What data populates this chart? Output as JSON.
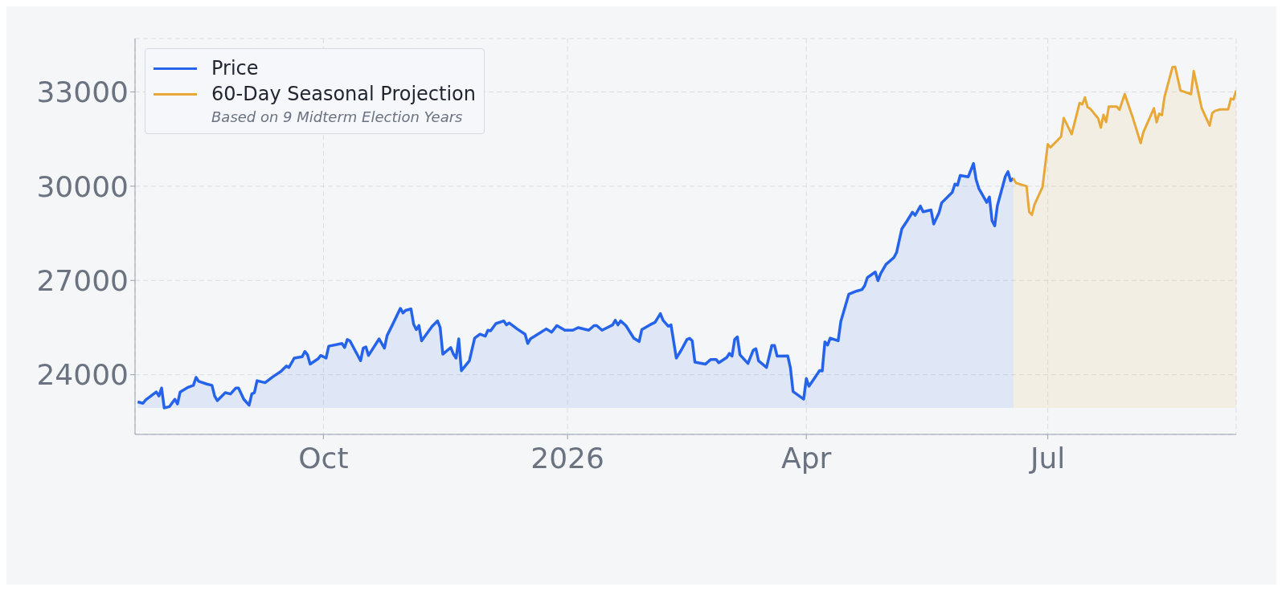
{
  "chart_data": {
    "type": "area",
    "xlim": [
      "2025-07-22",
      "2026-09-10"
    ],
    "xticks": [
      {
        "value": "2025-10-01",
        "label": "Oct"
      },
      {
        "value": "2026-01-01",
        "label": "2026"
      },
      {
        "value": "2026-04-01",
        "label": "Apr"
      },
      {
        "value": "2026-07-01",
        "label": "Jul"
      }
    ],
    "ylim": [
      22100,
      34700
    ],
    "yticks": [
      24000,
      27000,
      30000,
      33000
    ],
    "grid": true,
    "legend": "top left",
    "annotations": [
      "Based on 9 Midterm Election Years"
    ],
    "series": [
      {
        "name": "Price",
        "color": "#2563eb",
        "x": [
          "2025-07-23",
          "2025-07-25",
          "2025-07-26",
          "2025-07-30",
          "2025-07-31",
          "2025-08-01",
          "2025-08-02",
          "2025-08-04",
          "2025-08-06",
          "2025-08-07",
          "2025-08-08",
          "2025-08-11",
          "2025-08-13",
          "2025-08-14",
          "2025-08-15",
          "2025-08-18",
          "2025-08-20",
          "2025-08-21",
          "2025-08-22",
          "2025-08-25",
          "2025-08-27",
          "2025-08-29",
          "2025-08-30",
          "2025-09-01",
          "2025-09-03",
          "2025-09-04",
          "2025-09-05",
          "2025-09-06",
          "2025-09-09",
          "2025-09-12",
          "2025-09-15",
          "2025-09-17",
          "2025-09-18",
          "2025-09-20",
          "2025-09-23",
          "2025-09-24",
          "2025-09-25",
          "2025-09-26",
          "2025-09-29",
          "2025-09-30",
          "2025-10-02",
          "2025-10-03",
          "2025-10-08",
          "2025-10-09",
          "2025-10-10",
          "2025-10-11",
          "2025-10-15",
          "2025-10-16",
          "2025-10-17",
          "2025-10-18",
          "2025-10-22",
          "2025-10-24",
          "2025-10-25",
          "2025-10-27",
          "2025-10-30",
          "2025-10-31",
          "2025-11-01",
          "2025-11-03",
          "2025-11-04",
          "2025-11-05",
          "2025-11-06",
          "2025-11-07",
          "2025-11-11",
          "2025-11-13",
          "2025-11-14",
          "2025-11-15",
          "2025-11-18",
          "2025-11-19",
          "2025-11-20",
          "2025-11-21",
          "2025-11-22",
          "2025-11-25",
          "2025-11-27",
          "2025-11-29",
          "2025-12-01",
          "2025-12-02",
          "2025-12-03",
          "2025-12-05",
          "2025-12-08",
          "2025-12-09",
          "2025-12-10",
          "2025-12-13",
          "2025-12-16",
          "2025-12-17",
          "2025-12-18",
          "2025-12-22",
          "2025-12-24",
          "2025-12-26",
          "2025-12-28",
          "2025-12-31",
          "2026-01-03",
          "2026-01-05",
          "2026-01-09",
          "2026-01-11",
          "2026-01-12",
          "2026-01-14",
          "2026-01-16",
          "2026-01-18",
          "2026-01-19",
          "2026-01-20",
          "2026-01-21",
          "2026-01-23",
          "2026-01-26",
          "2026-01-28",
          "2026-01-29",
          "2026-02-01",
          "2026-02-03",
          "2026-02-05",
          "2026-02-06",
          "2026-02-08",
          "2026-02-09",
          "2026-02-11",
          "2026-02-13",
          "2026-02-15",
          "2026-02-16",
          "2026-02-17",
          "2026-02-18",
          "2026-02-22",
          "2026-02-24",
          "2026-02-26",
          "2026-02-27",
          "2026-03-02",
          "2026-03-03",
          "2026-03-04",
          "2026-03-05",
          "2026-03-06",
          "2026-03-07",
          "2026-03-10",
          "2026-03-12",
          "2026-03-13",
          "2026-03-14",
          "2026-03-17",
          "2026-03-19",
          "2026-03-20",
          "2026-03-21",
          "2026-03-25",
          "2026-03-26",
          "2026-03-27",
          "2026-03-31",
          "2026-04-01",
          "2026-04-02",
          "2026-04-06",
          "2026-04-07",
          "2026-04-08",
          "2026-04-09",
          "2026-04-10",
          "2026-04-13",
          "2026-04-14",
          "2026-04-17",
          "2026-04-20",
          "2026-04-22",
          "2026-04-23",
          "2026-04-24",
          "2026-04-27",
          "2026-04-28",
          "2026-04-29",
          "2026-05-01",
          "2026-05-04",
          "2026-05-05",
          "2026-05-07",
          "2026-05-09",
          "2026-05-11",
          "2026-05-12",
          "2026-05-14",
          "2026-05-15",
          "2026-05-18",
          "2026-05-19",
          "2026-05-21",
          "2026-05-22",
          "2026-05-26",
          "2026-05-27",
          "2026-05-28",
          "2026-05-29",
          "2026-06-01",
          "2026-06-03",
          "2026-06-04",
          "2026-06-05",
          "2026-06-08",
          "2026-06-09",
          "2026-06-10",
          "2026-06-11",
          "2026-06-12",
          "2026-06-15",
          "2026-06-16",
          "2026-06-17",
          "2026-06-18"
        ],
        "values": [
          23134,
          23091,
          23197,
          23451,
          23324,
          23577,
          22944,
          22986,
          23218,
          23070,
          23451,
          23599,
          23662,
          23915,
          23789,
          23704,
          23662,
          23324,
          23176,
          23430,
          23387,
          23577,
          23577,
          23218,
          23028,
          23387,
          23430,
          23810,
          23746,
          23937,
          24106,
          24275,
          24232,
          24528,
          24571,
          24740,
          24634,
          24338,
          24507,
          24613,
          24528,
          24909,
          24993,
          24866,
          25120,
          25078,
          24444,
          24845,
          24887,
          24613,
          25141,
          24845,
          25247,
          25585,
          26113,
          25965,
          26050,
          26092,
          25606,
          25437,
          25564,
          25078,
          25542,
          25712,
          25500,
          24655,
          24866,
          24655,
          24528,
          25141,
          24127,
          24444,
          25162,
          25289,
          25226,
          25416,
          25395,
          25627,
          25712,
          25585,
          25648,
          25458,
          25289,
          24993,
          25141,
          25352,
          25458,
          25352,
          25564,
          25416,
          25416,
          25500,
          25416,
          25564,
          25564,
          25416,
          25500,
          25585,
          25733,
          25585,
          25712,
          25564,
          25162,
          25057,
          25437,
          25585,
          25669,
          25944,
          25733,
          25542,
          25585,
          24528,
          24803,
          25120,
          25162,
          25078,
          24401,
          24338,
          24486,
          24486,
          24380,
          24549,
          24676,
          24592,
          25120,
          25204,
          24634,
          24359,
          24782,
          24824,
          24444,
          24232,
          24930,
          24930,
          24592,
          24600,
          24221,
          23464,
          23223,
          23877,
          23636,
          24131,
          24117,
          25046,
          24943,
          25163,
          25081,
          25700,
          26560,
          26663,
          26711,
          26835,
          27090,
          27269,
          26993,
          27214,
          27510,
          27730,
          27888,
          28645,
          28899,
          29174,
          29071,
          29367,
          29188,
          29243,
          28796,
          29154,
          29470,
          29807,
          30069,
          30034,
          30344,
          30296,
          30722,
          30206,
          29931,
          29484,
          29656,
          28899,
          28741,
          29381,
          30310,
          30461,
          30172,
          30255
        ]
      },
      {
        "name": "60-Day Seasonal Projection",
        "color": "#e8a838",
        "x": [
          "2026-06-18",
          "2026-06-19",
          "2026-06-23",
          "2026-06-24",
          "2026-06-25",
          "2026-06-26",
          "2026-06-29",
          "2026-07-01",
          "2026-07-02",
          "2026-07-06",
          "2026-07-07",
          "2026-07-10",
          "2026-07-13",
          "2026-07-14",
          "2026-07-15",
          "2026-07-16",
          "2026-07-17",
          "2026-07-20",
          "2026-07-21",
          "2026-07-22",
          "2026-07-23",
          "2026-07-24",
          "2026-07-27",
          "2026-07-28",
          "2026-07-30",
          "2026-08-02",
          "2026-08-05",
          "2026-08-06",
          "2026-08-10",
          "2026-08-11",
          "2026-08-12",
          "2026-08-13",
          "2026-08-14",
          "2026-08-17",
          "2026-08-18",
          "2026-08-20",
          "2026-08-24",
          "2026-08-25",
          "2026-08-28",
          "2026-08-31",
          "2026-09-01",
          "2026-09-02",
          "2026-09-04",
          "2026-09-07",
          "2026-09-08",
          "2026-09-09",
          "2026-09-10"
        ],
        "values": [
          30255,
          30103,
          30000,
          29178,
          29089,
          29418,
          29966,
          31336,
          31233,
          31575,
          32171,
          31657,
          32651,
          32603,
          32829,
          32514,
          32466,
          32157,
          31863,
          32274,
          32041,
          32534,
          32534,
          32431,
          32931,
          32192,
          31370,
          31712,
          32479,
          32034,
          32308,
          32260,
          32842,
          33788,
          33801,
          33048,
          32931,
          33664,
          32486,
          31931,
          32329,
          32397,
          32445,
          32445,
          32788,
          32760,
          33048
        ]
      }
    ]
  }
}
